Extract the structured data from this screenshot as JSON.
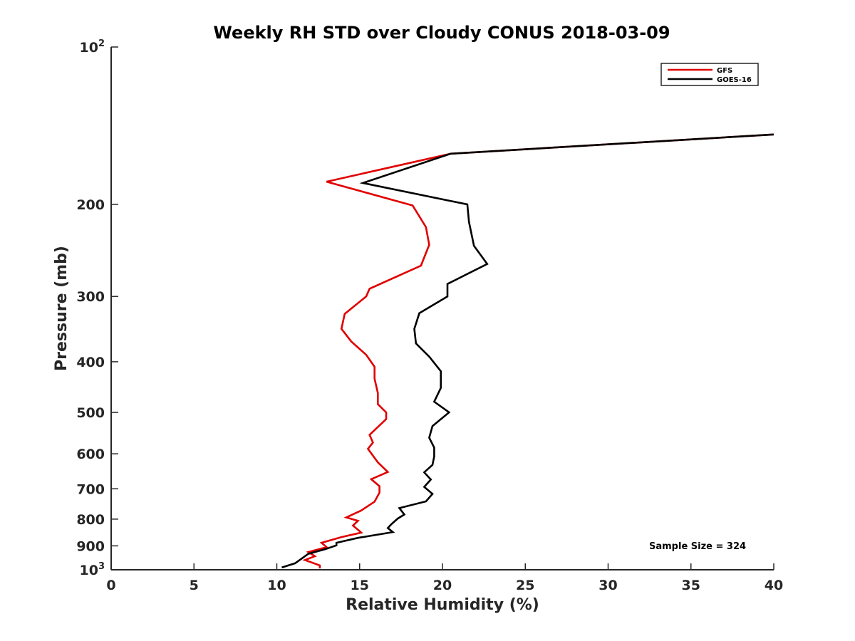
{
  "chart_data": {
    "type": "line",
    "title": "Weekly RH STD over Cloudy CONUS 2018-03-09",
    "xlabel": "Relative Humidity (%)",
    "ylabel": "Pressure (mb)",
    "xlim": [
      0,
      40
    ],
    "ylim": [
      100,
      1000
    ],
    "y_scale": "log",
    "y_reversed": true,
    "grid": false,
    "legend_position": "top-right",
    "x_ticks": [
      0,
      5,
      10,
      15,
      20,
      25,
      30,
      35,
      40
    ],
    "y_ticks": [
      {
        "value": 100,
        "base": "10",
        "exp": "2"
      },
      {
        "value": 200,
        "label": "200"
      },
      {
        "value": 300,
        "label": "300"
      },
      {
        "value": 400,
        "label": "400"
      },
      {
        "value": 500,
        "label": "500"
      },
      {
        "value": 600,
        "label": "600"
      },
      {
        "value": 700,
        "label": "700"
      },
      {
        "value": 800,
        "label": "800"
      },
      {
        "value": 900,
        "label": "900"
      },
      {
        "value": 1000,
        "base": "10",
        "exp": "3"
      }
    ],
    "series": [
      {
        "name": "GFS",
        "color": "#e00000",
        "points": [
          [
            40,
            147
          ],
          [
            20.5,
            160
          ],
          [
            13,
            181
          ],
          [
            18.2,
            201
          ],
          [
            19,
            221
          ],
          [
            19.2,
            239
          ],
          [
            18.7,
            262
          ],
          [
            15.6,
            290
          ],
          [
            15.4,
            300
          ],
          [
            14.1,
            324
          ],
          [
            13.9,
            346
          ],
          [
            14.5,
            366
          ],
          [
            15.4,
            388
          ],
          [
            15.9,
            409
          ],
          [
            15.9,
            431
          ],
          [
            16.1,
            459
          ],
          [
            16.1,
            482
          ],
          [
            16.6,
            500
          ],
          [
            16.6,
            515
          ],
          [
            15.6,
            552
          ],
          [
            15.8,
            571
          ],
          [
            15.5,
            587
          ],
          [
            16.1,
            623
          ],
          [
            16.7,
            650
          ],
          [
            15.7,
            671
          ],
          [
            16.2,
            692
          ],
          [
            16.2,
            712
          ],
          [
            15.9,
            741
          ],
          [
            15.1,
            770
          ],
          [
            14.2,
            794
          ],
          [
            14.9,
            806
          ],
          [
            14.6,
            823
          ],
          [
            15.1,
            849
          ],
          [
            13.9,
            866
          ],
          [
            12.7,
            888
          ],
          [
            13,
            905
          ],
          [
            11.9,
            925
          ],
          [
            12.3,
            942
          ],
          [
            11.7,
            958
          ],
          [
            12.6,
            981
          ],
          [
            12.6,
            994
          ]
        ]
      },
      {
        "name": "GOES-16",
        "color": "#000000",
        "points": [
          [
            40,
            147
          ],
          [
            20.5,
            160
          ],
          [
            15.2,
            182
          ],
          [
            21.5,
            200
          ],
          [
            21.6,
            216
          ],
          [
            21.9,
            240
          ],
          [
            22.7,
            260
          ],
          [
            20.3,
            284
          ],
          [
            20.3,
            300
          ],
          [
            18.6,
            323
          ],
          [
            18.3,
            346
          ],
          [
            18.4,
            369
          ],
          [
            19.2,
            391
          ],
          [
            19.9,
            417
          ],
          [
            19.9,
            449
          ],
          [
            19.5,
            477
          ],
          [
            20.4,
            500
          ],
          [
            19.4,
            531
          ],
          [
            19.2,
            559
          ],
          [
            19.5,
            584
          ],
          [
            19.5,
            607
          ],
          [
            19.4,
            630
          ],
          [
            18.9,
            651
          ],
          [
            19.3,
            672
          ],
          [
            18.9,
            694
          ],
          [
            19.4,
            716
          ],
          [
            19,
            740
          ],
          [
            17.4,
            762
          ],
          [
            17.7,
            784
          ],
          [
            17.3,
            798
          ],
          [
            16.9,
            819
          ],
          [
            16.7,
            832
          ],
          [
            17,
            847
          ],
          [
            14.9,
            869
          ],
          [
            13.6,
            888
          ],
          [
            13.6,
            898
          ],
          [
            12.9,
            914
          ],
          [
            11.9,
            932
          ],
          [
            11.5,
            952
          ],
          [
            11.1,
            972
          ],
          [
            10.3,
            990
          ]
        ]
      }
    ],
    "annotation": "Sample Size = 324"
  }
}
